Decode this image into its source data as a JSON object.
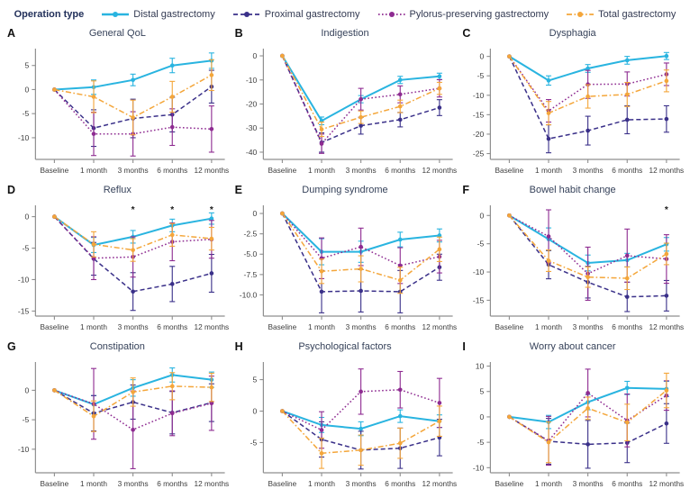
{
  "legend": {
    "title": "Operation type",
    "entries": [
      {
        "label": "Distal gastrectomy",
        "color": "#29b4e0",
        "style": "solid"
      },
      {
        "label": "Proximal gastrectomy",
        "color": "#3a3089",
        "style": "dashed"
      },
      {
        "label": "Pylorus-preserving gastrectomy",
        "color": "#8e2b91",
        "style": "dotted"
      },
      {
        "label": "Total gastrectomy",
        "color": "#f4a63a",
        "style": "dashdot"
      }
    ]
  },
  "categories": [
    "Baseline",
    "1 month",
    "3 months",
    "6 months",
    "12 months"
  ],
  "chart_data": [
    {
      "type": "line",
      "letter": "A",
      "title": "General QoL",
      "ylim": [
        -14.5,
        8.5
      ],
      "yticks": [
        5,
        0,
        -5,
        -10
      ],
      "ytick_labels": [
        "5",
        "0",
        "-5",
        "-10"
      ],
      "series": [
        {
          "name": "Distal gastrectomy",
          "values": [
            0,
            0.5,
            2,
            5,
            6
          ],
          "errors": [
            0,
            1.5,
            1.2,
            1.5,
            1.6
          ]
        },
        {
          "name": "Proximal gastrectomy",
          "values": [
            0,
            -8,
            -6,
            -5.2,
            0.6
          ],
          "errors": [
            0,
            3.8,
            4,
            3.6,
            3.4
          ]
        },
        {
          "name": "Pylorus-preserving gastrectomy",
          "values": [
            0,
            -9.2,
            -9.2,
            -7.8,
            -8.2
          ],
          "errors": [
            0,
            4.5,
            4.6,
            3.8,
            4.8
          ]
        },
        {
          "name": "Total gastrectomy",
          "values": [
            0,
            -1.5,
            -5.8,
            -1.5,
            3
          ],
          "errors": [
            0,
            3.3,
            3.6,
            3.2,
            3.2
          ]
        }
      ],
      "sig_markers": []
    },
    {
      "type": "line",
      "letter": "B",
      "title": "Indigestion",
      "ylim": [
        -43,
        3
      ],
      "yticks": [
        0,
        -10,
        -20,
        -30,
        -40
      ],
      "ytick_labels": [
        "0",
        "-10",
        "-20",
        "-30",
        "-40"
      ],
      "series": [
        {
          "name": "Distal gastrectomy",
          "values": [
            0,
            -27,
            -18,
            -10,
            -8.5
          ],
          "errors": [
            0,
            1.6,
            1.5,
            1.5,
            1.3
          ]
        },
        {
          "name": "Proximal gastrectomy",
          "values": [
            0,
            -36,
            -29,
            -26.5,
            -21.5
          ],
          "errors": [
            0,
            4,
            3.5,
            3,
            3.3
          ]
        },
        {
          "name": "Pylorus-preserving gastrectomy",
          "values": [
            0,
            -36.5,
            -18,
            -16,
            -13.5
          ],
          "errors": [
            0,
            4,
            4.5,
            3.5,
            3.6
          ]
        },
        {
          "name": "Total gastrectomy",
          "values": [
            0,
            -30.5,
            -25.5,
            -21,
            -13.5
          ],
          "errors": [
            0,
            3,
            2.6,
            2.6,
            2.5
          ]
        }
      ],
      "sig_markers": []
    },
    {
      "type": "line",
      "letter": "C",
      "title": "Dysphagia",
      "ylim": [
        -26.5,
        2
      ],
      "yticks": [
        0,
        -5,
        -10,
        -15,
        -20,
        -25
      ],
      "ytick_labels": [
        "0",
        "-5",
        "-10",
        "-15",
        "-20",
        "-25"
      ],
      "series": [
        {
          "name": "Distal gastrectomy",
          "values": [
            0,
            -6.2,
            -3.1,
            -1,
            0.1
          ],
          "errors": [
            0,
            1.2,
            1,
            1,
            0.9
          ]
        },
        {
          "name": "Proximal gastrectomy",
          "values": [
            0,
            -21.2,
            -19.1,
            -16.3,
            -16.1
          ],
          "errors": [
            0,
            3.6,
            3.7,
            3.6,
            3.4
          ]
        },
        {
          "name": "Pylorus-preserving gastrectomy",
          "values": [
            0,
            -14,
            -7.2,
            -7.1,
            -4.6
          ],
          "errors": [
            0,
            2.9,
            3.6,
            3.1,
            2.9
          ]
        },
        {
          "name": "Total gastrectomy",
          "values": [
            0,
            -14.6,
            -10.3,
            -9.8,
            -6.3
          ],
          "errors": [
            0,
            3,
            3,
            3.1,
            2.8
          ]
        }
      ],
      "sig_markers": []
    },
    {
      "type": "line",
      "letter": "D",
      "title": "Reflux",
      "ylim": [
        -15.8,
        1.8
      ],
      "yticks": [
        0,
        -5,
        -10,
        -15
      ],
      "ytick_labels": [
        "0",
        "-5",
        "-10",
        "-15"
      ],
      "series": [
        {
          "name": "Distal gastrectomy",
          "values": [
            0,
            -4.5,
            -3.2,
            -1.4,
            -0.3
          ],
          "errors": [
            0,
            1.2,
            1,
            1,
            0.9
          ]
        },
        {
          "name": "Proximal gastrectomy",
          "values": [
            0,
            -6.7,
            -11.9,
            -10.7,
            -9
          ],
          "errors": [
            0,
            2.6,
            3,
            2.8,
            3
          ]
        },
        {
          "name": "Pylorus-preserving gastrectomy",
          "values": [
            0,
            -6.6,
            -6.4,
            -4,
            -3.6
          ],
          "errors": [
            0,
            3.4,
            3.2,
            3,
            3
          ]
        },
        {
          "name": "Total gastrectomy",
          "values": [
            0,
            -4.4,
            -5.3,
            -2.9,
            -3.5
          ],
          "errors": [
            0,
            2,
            1.8,
            1.8,
            1.8
          ]
        }
      ],
      "sig_markers": [
        {
          "x_index": 2,
          "label": "*"
        },
        {
          "x_index": 3,
          "label": "*"
        },
        {
          "x_index": 4,
          "label": "*"
        }
      ]
    },
    {
      "type": "line",
      "letter": "E",
      "title": "Dumping syndrome",
      "ylim": [
        -12.6,
        1
      ],
      "yticks": [
        0,
        -2.5,
        -5,
        -7.5,
        -10
      ],
      "ytick_labels": [
        "0",
        "-2.5",
        "-5.0",
        "-7.5",
        "-10.0"
      ],
      "series": [
        {
          "name": "Distal gastrectomy",
          "values": [
            0,
            -4.7,
            -4.7,
            -3.2,
            -2.7
          ],
          "errors": [
            0,
            1.6,
            1.3,
            0.9,
            0.8
          ]
        },
        {
          "name": "Proximal gastrectomy",
          "values": [
            0,
            -9.6,
            -9.5,
            -9.6,
            -6.6
          ],
          "errors": [
            0,
            2.6,
            2.6,
            2.6,
            1.6
          ]
        },
        {
          "name": "Pylorus-preserving gastrectomy",
          "values": [
            0,
            -5.5,
            -4.1,
            -6.4,
            -5.3
          ],
          "errors": [
            0,
            2.5,
            2.3,
            2.2,
            2
          ]
        },
        {
          "name": "Total gastrectomy",
          "values": [
            0,
            -7.1,
            -6.8,
            -8.2,
            -4.4
          ],
          "errors": [
            0,
            1.5,
            1.6,
            1.6,
            1.5
          ]
        }
      ],
      "sig_markers": []
    },
    {
      "type": "line",
      "letter": "F",
      "title": "Bowel habit change",
      "ylim": [
        -17.8,
        1.8
      ],
      "yticks": [
        0,
        -5,
        -10,
        -15
      ],
      "ytick_labels": [
        "0",
        "-5",
        "-10",
        "-15"
      ],
      "series": [
        {
          "name": "Distal gastrectomy",
          "values": [
            0,
            -4.2,
            -8.4,
            -7.9,
            -5.1
          ],
          "errors": [
            0,
            2,
            1.4,
            1.2,
            1.2
          ]
        },
        {
          "name": "Proximal gastrectomy",
          "values": [
            0,
            -8.7,
            -11.8,
            -14.4,
            -14.2
          ],
          "errors": [
            0,
            2.5,
            2.8,
            2.6,
            2.7
          ]
        },
        {
          "name": "Pylorus-preserving gastrectomy",
          "values": [
            0,
            -3.7,
            -10.3,
            -7.1,
            -7.7
          ],
          "errors": [
            0,
            4.7,
            4.7,
            4.7,
            4.3
          ]
        },
        {
          "name": "Total gastrectomy",
          "values": [
            0,
            -8,
            -10.9,
            -11.1,
            -6.8
          ],
          "errors": [
            0,
            1.9,
            1.8,
            2,
            1.9
          ]
        }
      ],
      "sig_markers": [
        {
          "x_index": 4,
          "label": "*"
        }
      ]
    },
    {
      "type": "line",
      "letter": "G",
      "title": "Constipation",
      "ylim": [
        -14,
        4.8
      ],
      "yticks": [
        0,
        -5,
        -10
      ],
      "ytick_labels": [
        "0",
        "-5",
        "-10"
      ],
      "series": [
        {
          "name": "Distal gastrectomy",
          "values": [
            0,
            -2.4,
            0.4,
            2.6,
            1.8
          ],
          "errors": [
            0,
            1.5,
            1.4,
            1.2,
            1.3
          ]
        },
        {
          "name": "Proximal gastrectomy",
          "values": [
            0,
            -3.9,
            -2,
            -3.8,
            -2.1
          ],
          "errors": [
            0,
            3,
            2.9,
            3.6,
            3.2
          ]
        },
        {
          "name": "Pylorus-preserving gastrectomy",
          "values": [
            0,
            -2.3,
            -6.7,
            -3.9,
            -2.2
          ],
          "errors": [
            0,
            6,
            6.6,
            3.8,
            4.6
          ]
        },
        {
          "name": "Total gastrectomy",
          "values": [
            0,
            -4.4,
            -0.3,
            0.7,
            0.5
          ],
          "errors": [
            0,
            2.6,
            2.4,
            2.3,
            2.4
          ]
        }
      ],
      "sig_markers": []
    },
    {
      "type": "line",
      "letter": "H",
      "title": "Psychological factors",
      "ylim": [
        -9.8,
        7.8
      ],
      "yticks": [
        5,
        0,
        -5
      ],
      "ytick_labels": [
        "5",
        "0",
        "-5"
      ],
      "series": [
        {
          "name": "Distal gastrectomy",
          "values": [
            0,
            -2.2,
            -2.8,
            -0.8,
            -1.6
          ],
          "errors": [
            0,
            1.2,
            1.1,
            1,
            1
          ]
        },
        {
          "name": "Proximal gastrectomy",
          "values": [
            0,
            -4.5,
            -6.2,
            -5.9,
            -4.2
          ],
          "errors": [
            0,
            2.8,
            3,
            3.2,
            2.9
          ]
        },
        {
          "name": "Pylorus-preserving gastrectomy",
          "values": [
            0,
            -3,
            3.1,
            3.4,
            1.3
          ],
          "errors": [
            0,
            2.9,
            3.6,
            2.9,
            3.9
          ]
        },
        {
          "name": "Total gastrectomy",
          "values": [
            0,
            -6.7,
            -6.2,
            -5.1,
            -1.6
          ],
          "errors": [
            0,
            2.4,
            2.4,
            2.4,
            2.4
          ]
        }
      ],
      "sig_markers": []
    },
    {
      "type": "line",
      "letter": "I",
      "title": "Worry about cancer",
      "ylim": [
        -11,
        10.8
      ],
      "yticks": [
        10,
        5,
        0,
        -5,
        -10
      ],
      "ytick_labels": [
        "10",
        "5",
        "0",
        "-5",
        "-10"
      ],
      "series": [
        {
          "name": "Distal gastrectomy",
          "values": [
            0,
            -1,
            2.9,
            5.7,
            5.5
          ],
          "errors": [
            0,
            1.3,
            1.5,
            1.3,
            1.5
          ]
        },
        {
          "name": "Proximal gastrectomy",
          "values": [
            0,
            -4.8,
            -5.4,
            -5.1,
            -1.3
          ],
          "errors": [
            0,
            4.5,
            4.7,
            3.9,
            3.9
          ]
        },
        {
          "name": "Pylorus-preserving gastrectomy",
          "values": [
            0,
            -4.7,
            4.7,
            -0.7,
            4.2
          ],
          "errors": [
            0,
            4.8,
            4.7,
            5.2,
            2.9
          ]
        },
        {
          "name": "Total gastrectomy",
          "values": [
            0,
            -5,
            1.7,
            -1.1,
            5.2
          ],
          "errors": [
            0,
            4,
            2.2,
            3.6,
            3.4
          ]
        }
      ],
      "sig_markers": []
    }
  ]
}
